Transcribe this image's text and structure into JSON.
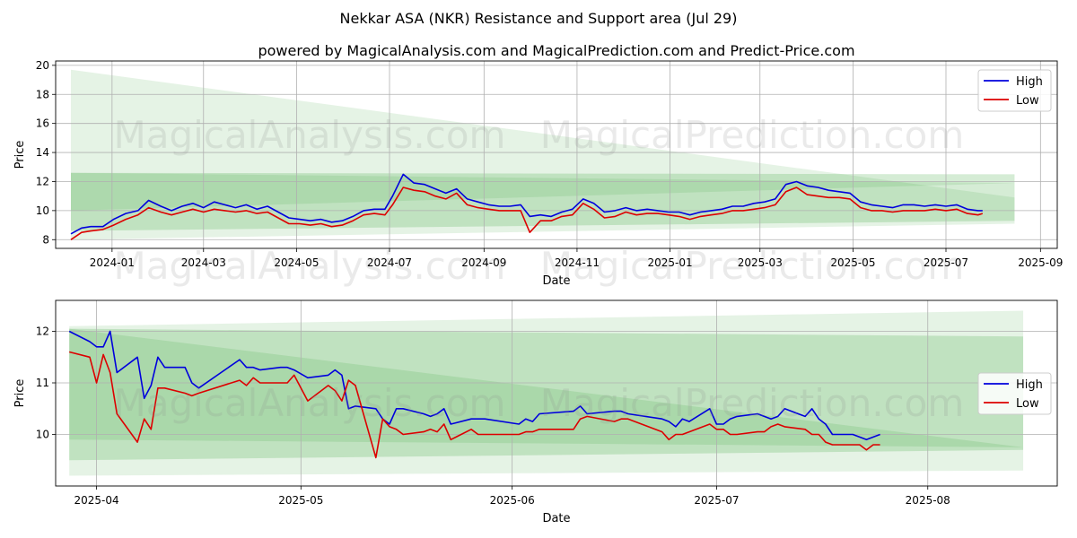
{
  "title": "Nekkar ASA (NKR) Resistance and Support area (Jul 29)",
  "subtitle": "powered by MagicalAnalysis.com and MagicalPrediction.com and Predict-Price.com",
  "watermarks": [
    "MagicalAnalysis.com",
    "MagicalPrediction.com"
  ],
  "colors": {
    "high": "#0000dd",
    "low": "#dd0000",
    "band": "#2ca02c"
  },
  "chart_data": [
    {
      "type": "line",
      "xlabel": "Date",
      "ylabel": "Price",
      "xlim": [
        "2023-11-25",
        "2025-09-12"
      ],
      "ylim": [
        7.4,
        20.3
      ],
      "x_tick_labels": [
        "2024-01",
        "2024-03",
        "2024-05",
        "2024-07",
        "2024-09",
        "2024-11",
        "2025-01",
        "2025-03",
        "2025-05",
        "2025-07",
        "2025-09"
      ],
      "x_ticks": [
        "2024-01-01",
        "2024-03-01",
        "2024-05-01",
        "2024-07-01",
        "2024-09-01",
        "2024-11-01",
        "2025-01-01",
        "2025-03-01",
        "2025-05-01",
        "2025-07-01",
        "2025-09-01"
      ],
      "y_ticks": [
        8,
        10,
        12,
        14,
        16,
        18,
        20
      ],
      "y_tick_labels": [
        "8",
        "10",
        "12",
        "14",
        "16",
        "18",
        "20"
      ],
      "grid": true,
      "legend": "top-right",
      "series": [
        {
          "name": "High",
          "x": [
            "2023-12-05",
            "2023-12-12",
            "2023-12-18",
            "2023-12-26",
            "2024-01-02",
            "2024-01-10",
            "2024-01-18",
            "2024-01-25",
            "2024-02-02",
            "2024-02-09",
            "2024-02-16",
            "2024-02-23",
            "2024-03-01",
            "2024-03-08",
            "2024-03-15",
            "2024-03-22",
            "2024-03-29",
            "2024-04-05",
            "2024-04-12",
            "2024-04-19",
            "2024-04-26",
            "2024-05-03",
            "2024-05-10",
            "2024-05-17",
            "2024-05-24",
            "2024-05-31",
            "2024-06-07",
            "2024-06-14",
            "2024-06-21",
            "2024-06-28",
            "2024-07-03",
            "2024-07-10",
            "2024-07-17",
            "2024-07-24",
            "2024-07-31",
            "2024-08-07",
            "2024-08-14",
            "2024-08-21",
            "2024-08-28",
            "2024-09-04",
            "2024-09-11",
            "2024-09-18",
            "2024-09-25",
            "2024-10-01",
            "2024-10-08",
            "2024-10-15",
            "2024-10-22",
            "2024-10-29",
            "2024-11-05",
            "2024-11-12",
            "2024-11-19",
            "2024-11-26",
            "2024-12-03",
            "2024-12-10",
            "2024-12-17",
            "2024-12-24",
            "2024-12-31",
            "2025-01-07",
            "2025-01-14",
            "2025-01-21",
            "2025-01-28",
            "2025-02-04",
            "2025-02-11",
            "2025-02-18",
            "2025-02-25",
            "2025-03-04",
            "2025-03-11",
            "2025-03-18",
            "2025-03-25",
            "2025-04-01",
            "2025-04-08",
            "2025-04-15",
            "2025-04-22",
            "2025-04-29",
            "2025-05-06",
            "2025-05-13",
            "2025-05-20",
            "2025-05-27",
            "2025-06-03",
            "2025-06-10",
            "2025-06-17",
            "2025-06-24",
            "2025-07-01",
            "2025-07-08",
            "2025-07-15",
            "2025-07-22",
            "2025-07-25"
          ],
          "values": [
            8.4,
            8.8,
            8.9,
            8.9,
            9.4,
            9.8,
            10.0,
            10.7,
            10.3,
            10.0,
            10.3,
            10.5,
            10.2,
            10.6,
            10.4,
            10.2,
            10.4,
            10.1,
            10.3,
            9.9,
            9.5,
            9.4,
            9.3,
            9.4,
            9.2,
            9.3,
            9.6,
            10.0,
            10.1,
            10.1,
            11.0,
            12.5,
            11.9,
            11.8,
            11.5,
            11.2,
            11.5,
            10.8,
            10.6,
            10.4,
            10.3,
            10.3,
            10.4,
            9.6,
            9.7,
            9.6,
            9.9,
            10.1,
            10.8,
            10.5,
            9.9,
            10.0,
            10.2,
            10.0,
            10.1,
            10.0,
            9.9,
            9.9,
            9.7,
            9.9,
            10.0,
            10.1,
            10.3,
            10.3,
            10.5,
            10.6,
            10.8,
            11.8,
            12.0,
            11.7,
            11.6,
            11.4,
            11.3,
            11.2,
            10.6,
            10.4,
            10.3,
            10.2,
            10.4,
            10.4,
            10.3,
            10.4,
            10.3,
            10.4,
            10.1,
            10.0,
            10.0
          ]
        },
        {
          "name": "Low",
          "x": [
            "2023-12-05",
            "2023-12-12",
            "2023-12-18",
            "2023-12-26",
            "2024-01-02",
            "2024-01-10",
            "2024-01-18",
            "2024-01-25",
            "2024-02-02",
            "2024-02-09",
            "2024-02-16",
            "2024-02-23",
            "2024-03-01",
            "2024-03-08",
            "2024-03-15",
            "2024-03-22",
            "2024-03-29",
            "2024-04-05",
            "2024-04-12",
            "2024-04-19",
            "2024-04-26",
            "2024-05-03",
            "2024-05-10",
            "2024-05-17",
            "2024-05-24",
            "2024-05-31",
            "2024-06-07",
            "2024-06-14",
            "2024-06-21",
            "2024-06-28",
            "2024-07-03",
            "2024-07-10",
            "2024-07-17",
            "2024-07-24",
            "2024-07-31",
            "2024-08-07",
            "2024-08-14",
            "2024-08-21",
            "2024-08-28",
            "2024-09-04",
            "2024-09-11",
            "2024-09-18",
            "2024-09-25",
            "2024-10-01",
            "2024-10-08",
            "2024-10-15",
            "2024-10-22",
            "2024-10-29",
            "2024-11-05",
            "2024-11-12",
            "2024-11-19",
            "2024-11-26",
            "2024-12-03",
            "2024-12-10",
            "2024-12-17",
            "2024-12-24",
            "2024-12-31",
            "2025-01-07",
            "2025-01-14",
            "2025-01-21",
            "2025-01-28",
            "2025-02-04",
            "2025-02-11",
            "2025-02-18",
            "2025-02-25",
            "2025-03-04",
            "2025-03-11",
            "2025-03-18",
            "2025-03-25",
            "2025-04-01",
            "2025-04-08",
            "2025-04-15",
            "2025-04-22",
            "2025-04-29",
            "2025-05-06",
            "2025-05-13",
            "2025-05-20",
            "2025-05-27",
            "2025-06-03",
            "2025-06-10",
            "2025-06-17",
            "2025-06-24",
            "2025-07-01",
            "2025-07-08",
            "2025-07-15",
            "2025-07-22",
            "2025-07-25"
          ],
          "values": [
            8.0,
            8.5,
            8.6,
            8.7,
            9.0,
            9.4,
            9.7,
            10.2,
            9.9,
            9.7,
            9.9,
            10.1,
            9.9,
            10.1,
            10.0,
            9.9,
            10.0,
            9.8,
            9.9,
            9.5,
            9.1,
            9.1,
            9.0,
            9.1,
            8.9,
            9.0,
            9.3,
            9.7,
            9.8,
            9.7,
            10.4,
            11.6,
            11.4,
            11.3,
            11.0,
            10.8,
            11.2,
            10.4,
            10.2,
            10.1,
            10.0,
            10.0,
            10.0,
            8.5,
            9.3,
            9.3,
            9.6,
            9.7,
            10.5,
            10.1,
            9.5,
            9.6,
            9.9,
            9.7,
            9.8,
            9.8,
            9.7,
            9.6,
            9.4,
            9.6,
            9.7,
            9.8,
            10.0,
            10.0,
            10.1,
            10.2,
            10.4,
            11.3,
            11.6,
            11.1,
            11.0,
            10.9,
            10.9,
            10.8,
            10.2,
            10.0,
            10.0,
            9.9,
            10.0,
            10.0,
            10.0,
            10.1,
            10.0,
            10.1,
            9.8,
            9.7,
            9.8
          ]
        }
      ],
      "bands": [
        {
          "x": [
            "2023-12-05",
            "2025-08-15"
          ],
          "upper": [
            19.7,
            10.9
          ],
          "lower": [
            8.0,
            9.1
          ],
          "opacity": 0.12
        },
        {
          "x": [
            "2023-12-05",
            "2025-08-15"
          ],
          "upper": [
            12.6,
            12.5
          ],
          "lower": [
            8.6,
            9.3
          ],
          "opacity": 0.2
        },
        {
          "x": [
            "2023-12-05",
            "2025-08-15"
          ],
          "upper": [
            12.6,
            11.9
          ],
          "lower": [
            10.0,
            11.9
          ],
          "opacity": 0.12
        }
      ]
    },
    {
      "type": "line",
      "xlabel": "Date",
      "ylabel": "Price",
      "xlim": [
        "2025-03-26",
        "2025-08-20"
      ],
      "ylim": [
        9.0,
        12.6
      ],
      "x_tick_labels": [
        "2025-04",
        "2025-05",
        "2025-06",
        "2025-07",
        "2025-08"
      ],
      "x_ticks": [
        "2025-04-01",
        "2025-05-01",
        "2025-06-01",
        "2025-07-01",
        "2025-08-01"
      ],
      "y_ticks": [
        10,
        11,
        12
      ],
      "y_tick_labels": [
        "10",
        "11",
        "12"
      ],
      "grid": true,
      "legend": "center-right",
      "series": [
        {
          "name": "High",
          "x": [
            "2025-03-28",
            "2025-03-31",
            "2025-04-01",
            "2025-04-02",
            "2025-04-03",
            "2025-04-04",
            "2025-04-07",
            "2025-04-08",
            "2025-04-09",
            "2025-04-10",
            "2025-04-11",
            "2025-04-14",
            "2025-04-15",
            "2025-04-16",
            "2025-04-22",
            "2025-04-23",
            "2025-04-24",
            "2025-04-25",
            "2025-04-28",
            "2025-04-29",
            "2025-04-30",
            "2025-05-02",
            "2025-05-05",
            "2025-05-06",
            "2025-05-07",
            "2025-05-08",
            "2025-05-09",
            "2025-05-12",
            "2025-05-13",
            "2025-05-14",
            "2025-05-15",
            "2025-05-16",
            "2025-05-19",
            "2025-05-20",
            "2025-05-21",
            "2025-05-22",
            "2025-05-23",
            "2025-05-26",
            "2025-05-27",
            "2025-05-28",
            "2025-06-02",
            "2025-06-03",
            "2025-06-04",
            "2025-06-05",
            "2025-06-10",
            "2025-06-11",
            "2025-06-12",
            "2025-06-16",
            "2025-06-17",
            "2025-06-18",
            "2025-06-23",
            "2025-06-24",
            "2025-06-25",
            "2025-06-26",
            "2025-06-27",
            "2025-06-30",
            "2025-07-01",
            "2025-07-02",
            "2025-07-03",
            "2025-07-04",
            "2025-07-07",
            "2025-07-08",
            "2025-07-09",
            "2025-07-10",
            "2025-07-11",
            "2025-07-14",
            "2025-07-15",
            "2025-07-16",
            "2025-07-17",
            "2025-07-18",
            "2025-07-21",
            "2025-07-22",
            "2025-07-23",
            "2025-07-24",
            "2025-07-25"
          ],
          "values": [
            12.0,
            11.8,
            11.7,
            11.7,
            12.0,
            11.2,
            11.5,
            10.7,
            10.95,
            11.5,
            11.3,
            11.3,
            11.0,
            10.9,
            11.45,
            11.3,
            11.3,
            11.25,
            11.3,
            11.3,
            11.25,
            11.1,
            11.15,
            11.25,
            11.15,
            10.5,
            10.55,
            10.5,
            10.3,
            10.2,
            10.5,
            10.5,
            10.4,
            10.35,
            10.4,
            10.5,
            10.2,
            10.3,
            10.3,
            10.3,
            10.2,
            10.3,
            10.25,
            10.4,
            10.45,
            10.55,
            10.4,
            10.45,
            10.45,
            10.4,
            10.3,
            10.25,
            10.15,
            10.3,
            10.25,
            10.5,
            10.2,
            10.2,
            10.3,
            10.35,
            10.4,
            10.35,
            10.3,
            10.35,
            10.5,
            10.35,
            10.5,
            10.3,
            10.2,
            10.0,
            10.0,
            9.95,
            9.9,
            9.95,
            10.0
          ]
        },
        {
          "name": "Low",
          "x": [
            "2025-03-28",
            "2025-03-31",
            "2025-04-01",
            "2025-04-02",
            "2025-04-03",
            "2025-04-04",
            "2025-04-07",
            "2025-04-08",
            "2025-04-09",
            "2025-04-10",
            "2025-04-11",
            "2025-04-14",
            "2025-04-15",
            "2025-04-16",
            "2025-04-22",
            "2025-04-23",
            "2025-04-24",
            "2025-04-25",
            "2025-04-28",
            "2025-04-29",
            "2025-04-30",
            "2025-05-02",
            "2025-05-05",
            "2025-05-06",
            "2025-05-07",
            "2025-05-08",
            "2025-05-09",
            "2025-05-12",
            "2025-05-13",
            "2025-05-14",
            "2025-05-15",
            "2025-05-16",
            "2025-05-19",
            "2025-05-20",
            "2025-05-21",
            "2025-05-22",
            "2025-05-23",
            "2025-05-26",
            "2025-05-27",
            "2025-05-28",
            "2025-06-02",
            "2025-06-03",
            "2025-06-04",
            "2025-06-05",
            "2025-06-10",
            "2025-06-11",
            "2025-06-12",
            "2025-06-16",
            "2025-06-17",
            "2025-06-18",
            "2025-06-23",
            "2025-06-24",
            "2025-06-25",
            "2025-06-26",
            "2025-06-27",
            "2025-06-30",
            "2025-07-01",
            "2025-07-02",
            "2025-07-03",
            "2025-07-04",
            "2025-07-07",
            "2025-07-08",
            "2025-07-09",
            "2025-07-10",
            "2025-07-11",
            "2025-07-14",
            "2025-07-15",
            "2025-07-16",
            "2025-07-17",
            "2025-07-18",
            "2025-07-21",
            "2025-07-22",
            "2025-07-23",
            "2025-07-24",
            "2025-07-25"
          ],
          "values": [
            11.6,
            11.5,
            11.0,
            11.55,
            11.2,
            10.4,
            9.85,
            10.3,
            10.1,
            10.9,
            10.9,
            10.8,
            10.75,
            10.8,
            11.05,
            10.95,
            11.1,
            11.0,
            11.0,
            11.0,
            11.15,
            10.65,
            10.95,
            10.85,
            10.65,
            11.05,
            10.95,
            9.55,
            10.3,
            10.15,
            10.1,
            10.0,
            10.05,
            10.1,
            10.05,
            10.2,
            9.9,
            10.1,
            10.0,
            10.0,
            10.0,
            10.05,
            10.05,
            10.1,
            10.1,
            10.3,
            10.35,
            10.25,
            10.3,
            10.3,
            10.05,
            9.9,
            10.0,
            10.0,
            10.05,
            10.2,
            10.1,
            10.1,
            10.0,
            10.0,
            10.05,
            10.05,
            10.15,
            10.2,
            10.15,
            10.1,
            10.0,
            10.0,
            9.85,
            9.8,
            9.8,
            9.8,
            9.7,
            9.8,
            9.8
          ]
        }
      ],
      "bands": [
        {
          "x": [
            "2025-03-28",
            "2025-08-15"
          ],
          "upper": [
            12.1,
            12.4
          ],
          "lower": [
            9.2,
            9.3
          ],
          "opacity": 0.12
        },
        {
          "x": [
            "2025-03-28",
            "2025-08-15"
          ],
          "upper": [
            12.05,
            11.9
          ],
          "lower": [
            9.5,
            9.7
          ],
          "opacity": 0.2
        },
        {
          "x": [
            "2025-03-28",
            "2025-08-15"
          ],
          "upper": [
            12.05,
            9.75
          ],
          "lower": [
            9.9,
            9.75
          ],
          "opacity": 0.15
        }
      ]
    }
  ]
}
